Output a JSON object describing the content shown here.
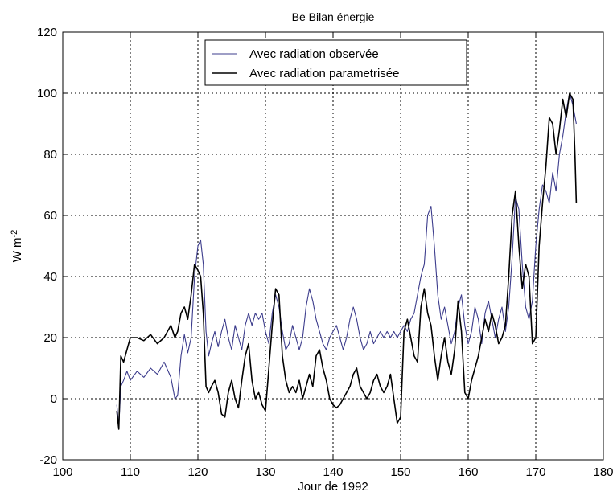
{
  "chart_data": {
    "type": "line",
    "title": "Be Bilan énergie",
    "xlabel": "Jour de 1992",
    "ylabel": "W m^-2",
    "xlim": [
      100,
      180
    ],
    "ylim": [
      -20,
      120
    ],
    "xticks": [
      100,
      110,
      120,
      130,
      140,
      150,
      160,
      170,
      180
    ],
    "yticks": [
      -20,
      0,
      20,
      40,
      60,
      80,
      100,
      120
    ],
    "grid": true,
    "legend_position": "top-center",
    "series": [
      {
        "name": "Avec radiation observée",
        "color": "#3c3c8c",
        "points": [
          [
            108.0,
            -2
          ],
          [
            108.3,
            -9
          ],
          [
            108.6,
            4
          ],
          [
            109.0,
            6
          ],
          [
            109.5,
            9
          ],
          [
            110.0,
            6
          ],
          [
            111.0,
            9
          ],
          [
            112.0,
            7
          ],
          [
            113.0,
            10
          ],
          [
            114.0,
            8
          ],
          [
            115.0,
            12
          ],
          [
            116.0,
            7
          ],
          [
            116.6,
            0
          ],
          [
            117.0,
            1
          ],
          [
            117.5,
            14
          ],
          [
            118.0,
            21
          ],
          [
            118.5,
            15
          ],
          [
            119.0,
            20
          ],
          [
            119.5,
            40
          ],
          [
            120.0,
            50
          ],
          [
            120.4,
            52
          ],
          [
            120.8,
            44
          ],
          [
            121.2,
            22
          ],
          [
            121.6,
            14
          ],
          [
            122.0,
            18
          ],
          [
            122.5,
            22
          ],
          [
            123.0,
            17
          ],
          [
            123.5,
            22
          ],
          [
            124.0,
            26
          ],
          [
            124.5,
            20
          ],
          [
            125.0,
            16
          ],
          [
            125.5,
            24
          ],
          [
            126.0,
            20
          ],
          [
            126.5,
            16
          ],
          [
            127.0,
            24
          ],
          [
            127.5,
            28
          ],
          [
            128.0,
            24
          ],
          [
            128.5,
            28
          ],
          [
            129.0,
            26
          ],
          [
            129.5,
            28
          ],
          [
            130.0,
            22
          ],
          [
            130.5,
            18
          ],
          [
            131.0,
            28
          ],
          [
            131.5,
            34
          ],
          [
            132.0,
            30
          ],
          [
            132.5,
            22
          ],
          [
            133.0,
            16
          ],
          [
            133.5,
            18
          ],
          [
            134.0,
            24
          ],
          [
            134.5,
            20
          ],
          [
            135.0,
            16
          ],
          [
            135.5,
            20
          ],
          [
            136.0,
            30
          ],
          [
            136.5,
            36
          ],
          [
            137.0,
            32
          ],
          [
            137.5,
            26
          ],
          [
            138.0,
            22
          ],
          [
            138.5,
            18
          ],
          [
            139.0,
            16
          ],
          [
            139.5,
            20
          ],
          [
            140.0,
            22
          ],
          [
            140.5,
            24
          ],
          [
            141.0,
            20
          ],
          [
            141.5,
            16
          ],
          [
            142.0,
            20
          ],
          [
            142.5,
            26
          ],
          [
            143.0,
            30
          ],
          [
            143.5,
            26
          ],
          [
            144.0,
            20
          ],
          [
            144.5,
            16
          ],
          [
            145.0,
            18
          ],
          [
            145.5,
            22
          ],
          [
            146.0,
            18
          ],
          [
            146.5,
            20
          ],
          [
            147.0,
            22
          ],
          [
            147.5,
            20
          ],
          [
            148.0,
            22
          ],
          [
            148.5,
            20
          ],
          [
            149.0,
            22
          ],
          [
            149.5,
            20
          ],
          [
            150.0,
            22
          ],
          [
            150.5,
            24
          ],
          [
            151.0,
            22
          ],
          [
            151.5,
            26
          ],
          [
            152.0,
            28
          ],
          [
            152.5,
            34
          ],
          [
            153.0,
            40
          ],
          [
            153.5,
            44
          ],
          [
            154.0,
            60
          ],
          [
            154.5,
            63
          ],
          [
            155.0,
            50
          ],
          [
            155.5,
            34
          ],
          [
            156.0,
            26
          ],
          [
            156.5,
            30
          ],
          [
            157.0,
            24
          ],
          [
            157.5,
            18
          ],
          [
            158.0,
            22
          ],
          [
            158.5,
            30
          ],
          [
            159.0,
            34
          ],
          [
            159.5,
            24
          ],
          [
            160.0,
            18
          ],
          [
            160.5,
            22
          ],
          [
            161.0,
            30
          ],
          [
            161.5,
            26
          ],
          [
            162.0,
            18
          ],
          [
            162.5,
            28
          ],
          [
            163.0,
            32
          ],
          [
            163.5,
            26
          ],
          [
            164.0,
            20
          ],
          [
            164.5,
            26
          ],
          [
            165.0,
            30
          ],
          [
            165.5,
            22
          ],
          [
            166.0,
            30
          ],
          [
            166.5,
            46
          ],
          [
            167.0,
            66
          ],
          [
            167.5,
            62
          ],
          [
            168.0,
            44
          ],
          [
            168.5,
            30
          ],
          [
            169.0,
            26
          ],
          [
            169.5,
            32
          ],
          [
            170.0,
            50
          ],
          [
            170.5,
            62
          ],
          [
            171.0,
            70
          ],
          [
            171.5,
            68
          ],
          [
            172.0,
            64
          ],
          [
            172.5,
            74
          ],
          [
            173.0,
            68
          ],
          [
            173.5,
            80
          ],
          [
            174.0,
            86
          ],
          [
            174.5,
            94
          ],
          [
            175.0,
            100
          ],
          [
            175.5,
            96
          ],
          [
            176.0,
            90
          ]
        ]
      },
      {
        "name": "Avec radiation parametrisée",
        "color": "#000000",
        "points": [
          [
            108.0,
            -4
          ],
          [
            108.3,
            -10
          ],
          [
            108.6,
            14
          ],
          [
            109.0,
            12
          ],
          [
            109.5,
            16
          ],
          [
            110.0,
            20
          ],
          [
            111.0,
            20
          ],
          [
            112.0,
            19
          ],
          [
            113.0,
            21
          ],
          [
            114.0,
            18
          ],
          [
            115.0,
            20
          ],
          [
            116.0,
            24
          ],
          [
            116.6,
            20
          ],
          [
            117.0,
            22
          ],
          [
            117.5,
            28
          ],
          [
            118.0,
            30
          ],
          [
            118.5,
            26
          ],
          [
            119.0,
            34
          ],
          [
            119.5,
            44
          ],
          [
            120.0,
            42
          ],
          [
            120.4,
            40
          ],
          [
            120.8,
            28
          ],
          [
            121.2,
            4
          ],
          [
            121.6,
            2
          ],
          [
            122.0,
            4
          ],
          [
            122.5,
            6
          ],
          [
            123.0,
            2
          ],
          [
            123.5,
            -5
          ],
          [
            124.0,
            -6
          ],
          [
            124.5,
            2
          ],
          [
            125.0,
            6
          ],
          [
            125.5,
            0
          ],
          [
            126.0,
            -3
          ],
          [
            126.5,
            6
          ],
          [
            127.0,
            14
          ],
          [
            127.5,
            18
          ],
          [
            128.0,
            6
          ],
          [
            128.5,
            0
          ],
          [
            129.0,
            2
          ],
          [
            129.5,
            -2
          ],
          [
            130.0,
            -4
          ],
          [
            130.5,
            10
          ],
          [
            131.0,
            24
          ],
          [
            131.5,
            36
          ],
          [
            132.0,
            34
          ],
          [
            132.5,
            14
          ],
          [
            133.0,
            6
          ],
          [
            133.5,
            2
          ],
          [
            134.0,
            4
          ],
          [
            134.5,
            2
          ],
          [
            135.0,
            6
          ],
          [
            135.5,
            0
          ],
          [
            136.0,
            4
          ],
          [
            136.5,
            8
          ],
          [
            137.0,
            4
          ],
          [
            137.5,
            14
          ],
          [
            138.0,
            16
          ],
          [
            138.5,
            10
          ],
          [
            139.0,
            6
          ],
          [
            139.5,
            0
          ],
          [
            140.0,
            -2
          ],
          [
            140.5,
            -3
          ],
          [
            141.0,
            -2
          ],
          [
            141.5,
            0
          ],
          [
            142.0,
            2
          ],
          [
            142.5,
            4
          ],
          [
            143.0,
            8
          ],
          [
            143.5,
            10
          ],
          [
            144.0,
            4
          ],
          [
            144.5,
            2
          ],
          [
            145.0,
            0
          ],
          [
            145.5,
            2
          ],
          [
            146.0,
            6
          ],
          [
            146.5,
            8
          ],
          [
            147.0,
            4
          ],
          [
            147.5,
            2
          ],
          [
            148.0,
            4
          ],
          [
            148.5,
            8
          ],
          [
            149.0,
            0
          ],
          [
            149.5,
            -8
          ],
          [
            150.0,
            -6
          ],
          [
            150.5,
            22
          ],
          [
            151.0,
            26
          ],
          [
            151.5,
            20
          ],
          [
            152.0,
            14
          ],
          [
            152.5,
            12
          ],
          [
            153.0,
            30
          ],
          [
            153.5,
            36
          ],
          [
            154.0,
            28
          ],
          [
            154.5,
            24
          ],
          [
            155.0,
            14
          ],
          [
            155.5,
            6
          ],
          [
            156.0,
            14
          ],
          [
            156.5,
            20
          ],
          [
            157.0,
            12
          ],
          [
            157.5,
            8
          ],
          [
            158.0,
            16
          ],
          [
            158.5,
            32
          ],
          [
            159.0,
            22
          ],
          [
            159.5,
            2
          ],
          [
            160.0,
            0
          ],
          [
            160.5,
            6
          ],
          [
            161.0,
            10
          ],
          [
            161.5,
            14
          ],
          [
            162.0,
            20
          ],
          [
            162.5,
            26
          ],
          [
            163.0,
            22
          ],
          [
            163.5,
            28
          ],
          [
            164.0,
            24
          ],
          [
            164.5,
            18
          ],
          [
            165.0,
            20
          ],
          [
            165.5,
            24
          ],
          [
            166.0,
            40
          ],
          [
            166.5,
            60
          ],
          [
            167.0,
            68
          ],
          [
            167.5,
            50
          ],
          [
            168.0,
            36
          ],
          [
            168.5,
            44
          ],
          [
            169.0,
            40
          ],
          [
            169.5,
            18
          ],
          [
            170.0,
            20
          ],
          [
            170.5,
            50
          ],
          [
            171.0,
            64
          ],
          [
            171.5,
            76
          ],
          [
            172.0,
            92
          ],
          [
            172.5,
            90
          ],
          [
            173.0,
            80
          ],
          [
            173.5,
            88
          ],
          [
            174.0,
            98
          ],
          [
            174.5,
            92
          ],
          [
            175.0,
            100
          ],
          [
            175.5,
            98
          ],
          [
            175.8,
            80
          ],
          [
            176.0,
            64
          ]
        ]
      }
    ]
  }
}
